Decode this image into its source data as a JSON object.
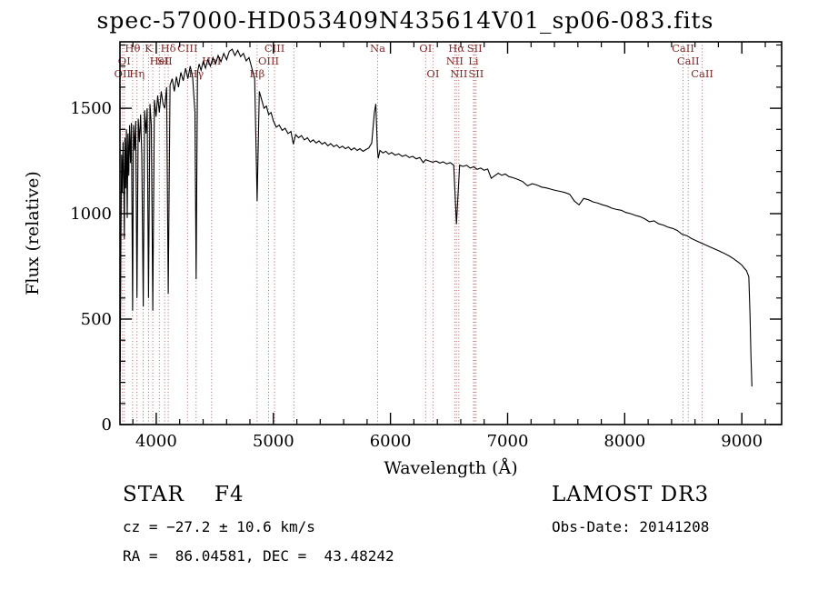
{
  "chart_data": {
    "type": "line",
    "title": "spec-57000-HD053409N435614V01_sp06-083.fits",
    "xlabel": "Wavelength (Å)",
    "ylabel": "Flux (relative)",
    "xlim": [
      3690,
      9340
    ],
    "ylim": [
      0,
      1815
    ],
    "x_major_ticks": [
      4000,
      5000,
      6000,
      7000,
      8000,
      9000
    ],
    "x_minor_step": 200,
    "y_major_ticks": [
      0,
      500,
      1000,
      1500
    ],
    "y_minor_step": 100,
    "grid": false,
    "line_color": "#000000",
    "marker_line_color": "#b06868",
    "marker_label_color": "#7d2a2a",
    "line_markers": [
      {
        "label": "Hθ",
        "wavelength": 3798,
        "row": 1
      },
      {
        "label": "K",
        "wavelength": 3934,
        "row": 1
      },
      {
        "label": "Hδ",
        "wavelength": 4102,
        "row": 1
      },
      {
        "label": "CIII",
        "wavelength": 4267,
        "row": 1
      },
      {
        "label": "CIII",
        "wavelength": 5010,
        "row": 1
      },
      {
        "label": "Na",
        "wavelength": 5890,
        "row": 1
      },
      {
        "label": "OI",
        "wavelength": 6300,
        "row": 1
      },
      {
        "label": "Hα",
        "wavelength": 6563,
        "row": 1
      },
      {
        "label": "SII",
        "wavelength": 6718,
        "row": 1
      },
      {
        "label": "CaII",
        "wavelength": 8498,
        "row": 1
      },
      {
        "label": "OI",
        "wavelength": 3727,
        "row": 2
      },
      {
        "label": "HeI",
        "wavelength": 4026,
        "row": 2
      },
      {
        "label": "SII",
        "wavelength": 4072,
        "row": 2
      },
      {
        "label": "HeI",
        "wavelength": 4472,
        "row": 2
      },
      {
        "label": "OIII",
        "wavelength": 4959,
        "row": 2
      },
      {
        "label": "NII",
        "wavelength": 6548,
        "row": 2
      },
      {
        "label": "Li",
        "wavelength": 6708,
        "row": 2
      },
      {
        "label": "CaII",
        "wavelength": 8542,
        "row": 2
      },
      {
        "label": "OII",
        "wavelength": 3712,
        "row": 3
      },
      {
        "label": "Hη",
        "wavelength": 3835,
        "row": 3
      },
      {
        "label": "Hγ",
        "wavelength": 4340,
        "row": 3
      },
      {
        "label": "Hβ",
        "wavelength": 4861,
        "row": 3
      },
      {
        "label": "OI",
        "wavelength": 6363,
        "row": 3
      },
      {
        "label": "NII",
        "wavelength": 6583,
        "row": 3
      },
      {
        "label": "SII",
        "wavelength": 6731,
        "row": 3
      },
      {
        "label": "CaII",
        "wavelength": 8662,
        "row": 3
      },
      {
        "label": "",
        "wavelength": 3889,
        "row": 3
      },
      {
        "label": "",
        "wavelength": 3970,
        "row": 3
      },
      {
        "label": "",
        "wavelength": 5175,
        "row": 3
      }
    ],
    "series": [
      {
        "name": "spectrum",
        "points": [
          [
            3692,
            250
          ],
          [
            3698,
            850
          ],
          [
            3704,
            1280
          ],
          [
            3710,
            1100
          ],
          [
            3716,
            1340
          ],
          [
            3722,
            1180
          ],
          [
            3727,
            880
          ],
          [
            3733,
            1360
          ],
          [
            3739,
            1120
          ],
          [
            3745,
            1400
          ],
          [
            3752,
            980
          ],
          [
            3758,
            1380
          ],
          [
            3765,
            1180
          ],
          [
            3772,
            1420
          ],
          [
            3780,
            1240
          ],
          [
            3788,
            1430
          ],
          [
            3798,
            540
          ],
          [
            3806,
            1420
          ],
          [
            3815,
            1300
          ],
          [
            3824,
            1440
          ],
          [
            3835,
            600
          ],
          [
            3846,
            1450
          ],
          [
            3856,
            1340
          ],
          [
            3866,
            1470
          ],
          [
            3876,
            1280
          ],
          [
            3889,
            560
          ],
          [
            3900,
            1490
          ],
          [
            3912,
            1380
          ],
          [
            3922,
            1500
          ],
          [
            3934,
            600
          ],
          [
            3946,
            1520
          ],
          [
            3958,
            1420
          ],
          [
            3970,
            540
          ],
          [
            3984,
            1540
          ],
          [
            3998,
            1460
          ],
          [
            4012,
            1560
          ],
          [
            4026,
            1480
          ],
          [
            4042,
            1580
          ],
          [
            4058,
            1520
          ],
          [
            4072,
            1500
          ],
          [
            4088,
            1600
          ],
          [
            4102,
            620
          ],
          [
            4118,
            1610
          ],
          [
            4136,
            1640
          ],
          [
            4154,
            1580
          ],
          [
            4172,
            1650
          ],
          [
            4190,
            1600
          ],
          [
            4210,
            1670
          ],
          [
            4230,
            1630
          ],
          [
            4250,
            1690
          ],
          [
            4270,
            1640
          ],
          [
            4290,
            1700
          ],
          [
            4310,
            1650
          ],
          [
            4330,
            1480
          ],
          [
            4340,
            690
          ],
          [
            4352,
            1670
          ],
          [
            4366,
            1710
          ],
          [
            4382,
            1680
          ],
          [
            4400,
            1720
          ],
          [
            4420,
            1690
          ],
          [
            4440,
            1730
          ],
          [
            4462,
            1700
          ],
          [
            4484,
            1740
          ],
          [
            4506,
            1710
          ],
          [
            4528,
            1750
          ],
          [
            4552,
            1720
          ],
          [
            4576,
            1760
          ],
          [
            4600,
            1730
          ],
          [
            4624,
            1770
          ],
          [
            4648,
            1780
          ],
          [
            4672,
            1750
          ],
          [
            4696,
            1775
          ],
          [
            4720,
            1745
          ],
          [
            4744,
            1760
          ],
          [
            4768,
            1725
          ],
          [
            4792,
            1740
          ],
          [
            4816,
            1690
          ],
          [
            4840,
            1640
          ],
          [
            4861,
            1060
          ],
          [
            4880,
            1580
          ],
          [
            4900,
            1540
          ],
          [
            4920,
            1500
          ],
          [
            4940,
            1510
          ],
          [
            4960,
            1470
          ],
          [
            4980,
            1480
          ],
          [
            5000,
            1440
          ],
          [
            5025,
            1410
          ],
          [
            5050,
            1420
          ],
          [
            5075,
            1395
          ],
          [
            5100,
            1405
          ],
          [
            5125,
            1380
          ],
          [
            5150,
            1390
          ],
          [
            5170,
            1330
          ],
          [
            5190,
            1375
          ],
          [
            5215,
            1360
          ],
          [
            5240,
            1370
          ],
          [
            5265,
            1350
          ],
          [
            5290,
            1360
          ],
          [
            5315,
            1340
          ],
          [
            5340,
            1350
          ],
          [
            5365,
            1335
          ],
          [
            5390,
            1345
          ],
          [
            5415,
            1330
          ],
          [
            5440,
            1338
          ],
          [
            5465,
            1322
          ],
          [
            5490,
            1332
          ],
          [
            5515,
            1318
          ],
          [
            5540,
            1326
          ],
          [
            5565,
            1312
          ],
          [
            5590,
            1320
          ],
          [
            5615,
            1308
          ],
          [
            5640,
            1316
          ],
          [
            5665,
            1302
          ],
          [
            5690,
            1312
          ],
          [
            5715,
            1300
          ],
          [
            5740,
            1308
          ],
          [
            5765,
            1296
          ],
          [
            5790,
            1304
          ],
          [
            5815,
            1312
          ],
          [
            5840,
            1335
          ],
          [
            5862,
            1480
          ],
          [
            5875,
            1520
          ],
          [
            5888,
            1310
          ],
          [
            5896,
            1262
          ],
          [
            5910,
            1300
          ],
          [
            5935,
            1288
          ],
          [
            5960,
            1296
          ],
          [
            5985,
            1282
          ],
          [
            6010,
            1290
          ],
          [
            6040,
            1278
          ],
          [
            6070,
            1284
          ],
          [
            6100,
            1272
          ],
          [
            6130,
            1278
          ],
          [
            6160,
            1266
          ],
          [
            6190,
            1272
          ],
          [
            6220,
            1260
          ],
          [
            6250,
            1266
          ],
          [
            6280,
            1242
          ],
          [
            6300,
            1256
          ],
          [
            6330,
            1250
          ],
          [
            6360,
            1244
          ],
          [
            6390,
            1250
          ],
          [
            6420,
            1240
          ],
          [
            6450,
            1246
          ],
          [
            6480,
            1236
          ],
          [
            6510,
            1242
          ],
          [
            6540,
            1230
          ],
          [
            6563,
            950
          ],
          [
            6590,
            1230
          ],
          [
            6620,
            1224
          ],
          [
            6650,
            1230
          ],
          [
            6680,
            1216
          ],
          [
            6710,
            1222
          ],
          [
            6740,
            1210
          ],
          [
            6770,
            1216
          ],
          [
            6800,
            1206
          ],
          [
            6830,
            1212
          ],
          [
            6860,
            1168
          ],
          [
            6890,
            1180
          ],
          [
            6920,
            1192
          ],
          [
            6950,
            1182
          ],
          [
            6980,
            1188
          ],
          [
            7010,
            1176
          ],
          [
            7050,
            1170
          ],
          [
            7090,
            1162
          ],
          [
            7130,
            1152
          ],
          [
            7170,
            1132
          ],
          [
            7210,
            1142
          ],
          [
            7250,
            1136
          ],
          [
            7290,
            1126
          ],
          [
            7330,
            1122
          ],
          [
            7370,
            1116
          ],
          [
            7410,
            1110
          ],
          [
            7450,
            1106
          ],
          [
            7490,
            1100
          ],
          [
            7530,
            1092
          ],
          [
            7570,
            1060
          ],
          [
            7610,
            1042
          ],
          [
            7650,
            1072
          ],
          [
            7690,
            1066
          ],
          [
            7730,
            1056
          ],
          [
            7770,
            1050
          ],
          [
            7810,
            1042
          ],
          [
            7850,
            1036
          ],
          [
            7890,
            1026
          ],
          [
            7930,
            1020
          ],
          [
            7970,
            1016
          ],
          [
            8010,
            1006
          ],
          [
            8050,
            1000
          ],
          [
            8090,
            992
          ],
          [
            8130,
            986
          ],
          [
            8170,
            976
          ],
          [
            8210,
            962
          ],
          [
            8250,
            966
          ],
          [
            8290,
            952
          ],
          [
            8330,
            946
          ],
          [
            8370,
            936
          ],
          [
            8410,
            930
          ],
          [
            8450,
            920
          ],
          [
            8490,
            902
          ],
          [
            8530,
            896
          ],
          [
            8570,
            882
          ],
          [
            8610,
            872
          ],
          [
            8650,
            862
          ],
          [
            8690,
            852
          ],
          [
            8730,
            842
          ],
          [
            8770,
            832
          ],
          [
            8810,
            822
          ],
          [
            8850,
            812
          ],
          [
            8890,
            800
          ],
          [
            8930,
            786
          ],
          [
            8970,
            770
          ],
          [
            9000,
            756
          ],
          [
            9020,
            742
          ],
          [
            9040,
            730
          ],
          [
            9060,
            700
          ],
          [
            9070,
            520
          ],
          [
            9078,
            330
          ],
          [
            9086,
            180
          ]
        ]
      }
    ]
  },
  "footer": {
    "class_line": "STAR    F4",
    "cz_line": "cz = −27.2 ± 10.6 km/s",
    "radec_line": "RA =  86.04581, DEC =  43.48242",
    "survey": "LAMOST DR3",
    "obs_date_line": "Obs-Date: 20141208"
  }
}
